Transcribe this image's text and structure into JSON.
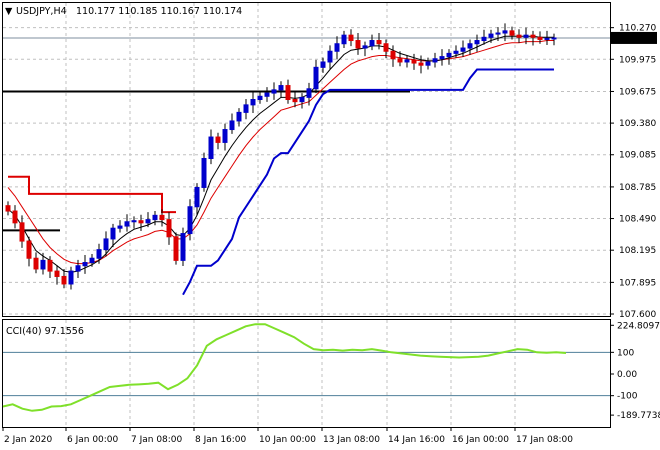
{
  "header": {
    "symbol_timeframe": "USDJPY,H4",
    "ohlc": "110.177 110.185 110.167 110.174"
  },
  "indicator_label": "CCI(40) 97.1556",
  "colors": {
    "bull_candle": "#0000cc",
    "bear_candle": "#dd0000",
    "ma_red": "#dd0000",
    "ma_black": "#000000",
    "support_blue": "#0000cc",
    "resistance_red": "#dd0000",
    "cci_line": "#7fe02a",
    "level_line": "#4f7f9a",
    "grid": "#c0c0c0",
    "current_price_box": "#000000"
  },
  "chart_data": [
    {
      "type": "candlestick",
      "title": "",
      "series_name": "USDJPY,H4",
      "ylim": [
        107.6,
        110.36
      ],
      "y_ticks": [
        "110.270",
        "109.975",
        "109.675",
        "109.380",
        "109.085",
        "108.785",
        "108.490",
        "108.195",
        "107.895",
        "107.600"
      ],
      "current_price": "110.174",
      "x_tick_labels": [
        "2 Jan 2020",
        "6 Jan 00:00",
        "7 Jan 08:00",
        "8 Jan 16:00",
        "10 Jan 00:00",
        "13 Jan 08:00",
        "14 Jan 16:00",
        "16 Jan 00:00",
        "17 Jan 08:00"
      ],
      "candles_close": [
        108.56,
        108.45,
        108.28,
        108.12,
        108.02,
        108.1,
        108.0,
        107.95,
        107.88,
        108.0,
        108.05,
        108.08,
        108.12,
        108.2,
        108.3,
        108.4,
        108.42,
        108.46,
        108.47,
        108.45,
        108.48,
        108.52,
        108.48,
        108.32,
        108.1,
        108.35,
        108.6,
        108.78,
        109.05,
        109.25,
        109.2,
        109.32,
        109.4,
        109.48,
        109.55,
        109.6,
        109.63,
        109.66,
        109.69,
        109.73,
        109.6,
        109.58,
        109.62,
        109.7,
        109.9,
        109.95,
        110.05,
        110.12,
        110.2,
        110.15,
        110.08,
        110.1,
        110.15,
        110.12,
        110.05,
        109.98,
        109.95,
        109.97,
        109.94,
        109.92,
        109.95,
        109.98,
        110.0,
        110.03,
        110.05,
        110.08,
        110.12,
        110.15,
        110.18,
        110.21,
        110.22,
        110.24,
        110.2,
        110.18,
        110.2,
        110.18,
        110.16,
        110.17,
        110.174
      ],
      "moving_average_red": [
        108.78,
        108.7,
        108.6,
        108.5,
        108.4,
        108.3,
        108.22,
        108.16,
        108.11,
        108.08,
        108.07,
        108.07,
        108.08,
        108.1,
        108.14,
        108.19,
        108.23,
        108.27,
        108.3,
        108.32,
        108.34,
        108.37,
        108.38,
        108.36,
        108.3,
        108.3,
        108.35,
        108.43,
        108.55,
        108.68,
        108.78,
        108.88,
        108.98,
        109.08,
        109.17,
        109.25,
        109.32,
        109.38,
        109.44,
        109.5,
        109.52,
        109.54,
        109.56,
        109.58,
        109.64,
        109.7,
        109.76,
        109.82,
        109.88,
        109.93,
        109.96,
        109.98,
        110.0,
        110.01,
        110.01,
        110.0,
        109.99,
        109.98,
        109.97,
        109.96,
        109.96,
        109.96,
        109.97,
        109.98,
        109.99,
        110.0,
        110.02,
        110.04,
        110.06,
        110.08,
        110.1,
        110.12,
        110.13,
        110.13,
        110.14,
        110.14,
        110.14,
        110.15,
        110.15
      ],
      "moving_average_black": [
        108.58,
        108.52,
        108.42,
        108.3,
        108.19,
        108.14,
        108.1,
        108.05,
        108.0,
        107.99,
        108.0,
        108.03,
        108.06,
        108.1,
        108.16,
        108.24,
        108.3,
        108.35,
        108.39,
        108.41,
        108.43,
        108.46,
        108.46,
        108.42,
        108.34,
        108.33,
        108.4,
        108.52,
        108.68,
        108.85,
        108.96,
        109.07,
        109.17,
        109.26,
        109.34,
        109.41,
        109.47,
        109.52,
        109.57,
        109.62,
        109.62,
        109.61,
        109.62,
        109.65,
        109.73,
        109.8,
        109.88,
        109.95,
        110.02,
        110.06,
        110.07,
        110.08,
        110.1,
        110.1,
        110.09,
        110.06,
        110.03,
        110.01,
        109.99,
        109.97,
        109.96,
        109.96,
        109.97,
        109.99,
        110.01,
        110.03,
        110.06,
        110.09,
        110.12,
        110.15,
        110.17,
        110.19,
        110.19,
        110.19,
        110.19,
        110.19,
        110.18,
        110.18,
        110.18
      ],
      "support_line_blue": [
        null,
        null,
        null,
        null,
        null,
        null,
        null,
        null,
        null,
        null,
        null,
        null,
        null,
        null,
        null,
        null,
        null,
        null,
        null,
        null,
        null,
        null,
        null,
        null,
        null,
        107.78,
        107.9,
        108.05,
        108.05,
        108.05,
        108.1,
        108.2,
        108.3,
        108.5,
        108.6,
        108.7,
        108.8,
        108.9,
        109.05,
        109.1,
        109.1,
        109.2,
        109.3,
        109.4,
        109.55,
        109.65,
        109.69,
        109.69,
        109.69,
        109.69,
        109.69,
        109.69,
        109.69,
        109.69,
        109.69,
        109.69,
        109.69,
        109.69,
        109.69,
        109.69,
        109.69,
        109.69,
        109.69,
        109.69,
        109.69,
        109.69,
        109.8,
        109.88,
        109.88,
        109.88,
        109.88,
        109.88,
        109.88,
        109.88,
        109.88,
        109.88,
        109.88,
        109.88,
        109.88
      ],
      "resistance_line_red": [
        108.88,
        108.88,
        108.88,
        108.72,
        108.72,
        108.72,
        108.72,
        108.72,
        108.72,
        108.72,
        108.72,
        108.72,
        108.72,
        108.72,
        108.72,
        108.72,
        108.72,
        108.72,
        108.72,
        108.72,
        108.72,
        108.72,
        108.55,
        108.55,
        108.55
      ],
      "horizontal_levels": [
        109.675,
        108.38
      ]
    },
    {
      "type": "line",
      "title": "",
      "series_name": "CCI(40) 97.1556",
      "ylim": [
        -240,
        240
      ],
      "y_ticks": [
        "224.8097",
        "100",
        "0.00",
        "-100",
        "-189.7738"
      ],
      "level_lines": [
        100,
        -100
      ],
      "values": [
        -150,
        -140,
        -160,
        -170,
        -165,
        -150,
        -148,
        -140,
        -120,
        -100,
        -80,
        -60,
        -55,
        -50,
        -48,
        -45,
        -40,
        -70,
        -50,
        -20,
        40,
        130,
        160,
        180,
        200,
        220,
        230,
        230,
        210,
        190,
        170,
        140,
        115,
        110,
        112,
        108,
        112,
        110,
        115,
        108,
        100,
        95,
        90,
        85,
        82,
        80,
        78,
        76,
        78,
        80,
        85,
        95,
        105,
        115,
        112,
        100,
        98,
        100,
        97
      ]
    }
  ]
}
